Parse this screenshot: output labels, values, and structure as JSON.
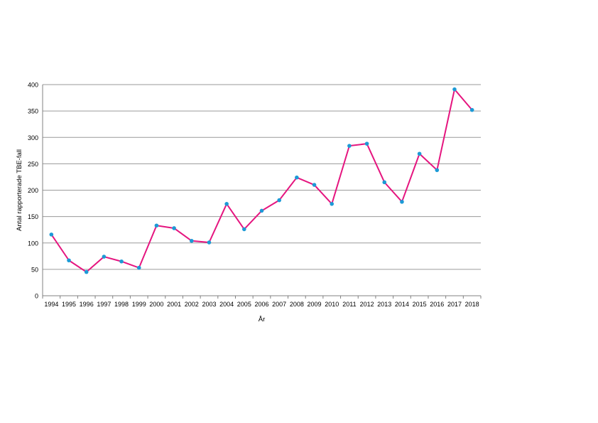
{
  "chart_data": {
    "type": "line",
    "title": "",
    "xlabel": "År",
    "ylabel": "Antal rapporterade TBE-fall",
    "ylim": [
      0,
      400
    ],
    "yticks": [
      0,
      50,
      100,
      150,
      200,
      250,
      300,
      350,
      400
    ],
    "grid": true,
    "categories": [
      "1994",
      "1995",
      "1996",
      "1997",
      "1998",
      "1999",
      "2000",
      "2001",
      "2002",
      "2003",
      "2004",
      "2005",
      "2006",
      "2007",
      "2008",
      "2009",
      "2010",
      "2011",
      "2012",
      "2013",
      "2014",
      "2015",
      "2016",
      "2017",
      "2018"
    ],
    "series": [
      {
        "values": [
          116,
          67,
          45,
          74,
          65,
          53,
          133,
          128,
          104,
          101,
          174,
          126,
          161,
          181,
          224,
          210,
          174,
          284,
          288,
          215,
          178,
          269,
          238,
          391,
          352
        ],
        "line_color": "#e5157f",
        "marker_color": "#1c9ad6"
      }
    ]
  }
}
